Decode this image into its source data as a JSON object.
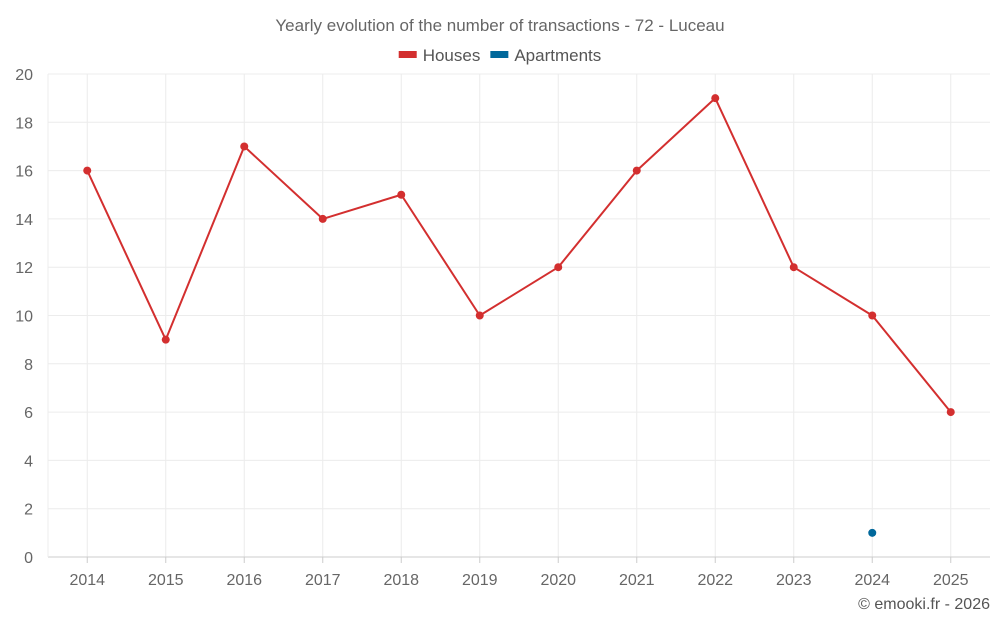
{
  "chart_data": {
    "type": "line",
    "title": "Yearly evolution of the number of transactions - 72 - Luceau",
    "categories": [
      "2014",
      "2015",
      "2016",
      "2017",
      "2018",
      "2019",
      "2020",
      "2021",
      "2022",
      "2023",
      "2024",
      "2025"
    ],
    "series": [
      {
        "name": "Houses",
        "color": "#d32f2f",
        "values": [
          16,
          9,
          17,
          14,
          15,
          10,
          12,
          16,
          19,
          12,
          10,
          6
        ]
      },
      {
        "name": "Apartments",
        "color": "#01689b",
        "values": [
          null,
          null,
          null,
          null,
          null,
          null,
          null,
          null,
          null,
          null,
          1,
          null
        ]
      }
    ],
    "ylim": [
      0,
      20
    ],
    "yticks": [
      0,
      2,
      4,
      6,
      8,
      10,
      12,
      14,
      16,
      18,
      20
    ],
    "grid": true,
    "legend": "top-center",
    "xlabel": "",
    "ylabel": ""
  },
  "credit": "© emooki.fr - 2026"
}
